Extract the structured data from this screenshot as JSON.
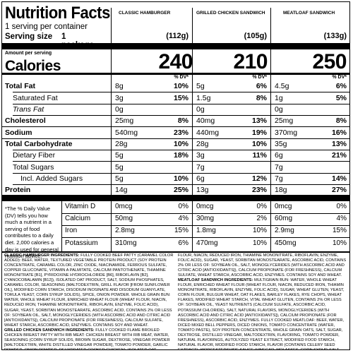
{
  "title": "Nutrition Facts",
  "servings_per_container": "1 serving per container",
  "serving_size_label": "Serving size",
  "serving_size_value": "1 package",
  "amount_per_serving": "Amount per serving",
  "calories_label": "Calories",
  "dv_header": "% DV*",
  "products": [
    {
      "name": "CLASSIC HAMBURGER",
      "size": "(112g)",
      "calories": "240"
    },
    {
      "name": "GRILLED CHICKEN SANDWICH",
      "size": "(105g)",
      "calories": "210"
    },
    {
      "name": "MEATLOAF SANDWICH",
      "size": "(133g)",
      "calories": "250"
    }
  ],
  "nutrients": [
    {
      "label": "Total Fat",
      "style": "bold",
      "values": [
        [
          "8g",
          "10%"
        ],
        [
          "5g",
          "6%"
        ],
        [
          "4.5g",
          "6%"
        ]
      ]
    },
    {
      "label": "Saturated Fat",
      "style": "i1",
      "values": [
        [
          "3g",
          "15%"
        ],
        [
          "1.5g",
          "8%"
        ],
        [
          "1g",
          "5%"
        ]
      ]
    },
    {
      "label": "Trans Fat",
      "style": "i1 it",
      "values": [
        [
          "0g",
          ""
        ],
        [
          "0g",
          ""
        ],
        [
          "0g",
          ""
        ]
      ]
    },
    {
      "label": "Cholesterol",
      "style": "bold",
      "values": [
        [
          "25mg",
          "8%"
        ],
        [
          "40mg",
          "13%"
        ],
        [
          "25mg",
          "8%"
        ]
      ]
    },
    {
      "label": "Sodium",
      "style": "bold",
      "values": [
        [
          "540mg",
          "23%"
        ],
        [
          "440mg",
          "19%"
        ],
        [
          "370mg",
          "16%"
        ]
      ]
    },
    {
      "label": "Total Carbohydrate",
      "style": "bold",
      "values": [
        [
          "28g",
          "10%"
        ],
        [
          "28g",
          "10%"
        ],
        [
          "35g",
          "13%"
        ]
      ]
    },
    {
      "label": "Dietary Fiber",
      "style": "i1",
      "values": [
        [
          "5g",
          "18%"
        ],
        [
          "3g",
          "11%"
        ],
        [
          "6g",
          "21%"
        ]
      ]
    },
    {
      "label": "Total Sugars",
      "style": "i1",
      "values": [
        [
          "5g",
          ""
        ],
        [
          "7g",
          ""
        ],
        [
          "7g",
          ""
        ]
      ]
    },
    {
      "label": "Incl. Added Sugars",
      "style": "i2",
      "values": [
        [
          "5g",
          "10%"
        ],
        [
          "6g",
          "12%"
        ],
        [
          "7g",
          "14%"
        ]
      ]
    },
    {
      "label": "Protein",
      "style": "bold",
      "values": [
        [
          "14g",
          "25%"
        ],
        [
          "13g",
          "23%"
        ],
        [
          "18g",
          "27%"
        ]
      ]
    }
  ],
  "footnote": "*The % Daily Value (DV) tells you how much a nutrient in a serving of food contributes to a daily diet. 2,000 calories a day is used for general nutrition advice.",
  "vitamins": [
    {
      "label": "Vitamin D",
      "values": [
        [
          "0mcg",
          "0%"
        ],
        [
          "0mcg",
          "0%"
        ],
        [
          "0mcg",
          "0%"
        ]
      ]
    },
    {
      "label": "Calcium",
      "values": [
        [
          "50mg",
          "4%"
        ],
        [
          "30mg",
          "2%"
        ],
        [
          "60mg",
          "4%"
        ]
      ]
    },
    {
      "label": "Iron",
      "values": [
        [
          "2.8mg",
          "15%"
        ],
        [
          "1.8mg",
          "10%"
        ],
        [
          "2.9mg",
          "15%"
        ]
      ]
    },
    {
      "label": "Potassium",
      "values": [
        [
          "310mg",
          "6%"
        ],
        [
          "470mg",
          "10%"
        ],
        [
          "450mg",
          "10%"
        ]
      ]
    }
  ],
  "ingredients": [
    {
      "heading": "CLASSIC HAMBURGER INGREDIENTS:",
      "text": "FULLY COOKED BEEF PATTY (CARAMEL COLOR ADDED): BEEF, WATER, TEXTURED VEGETABLE PROTEIN PRODUCT (SOY PROTEIN CONCENTRATE, CARAMEL COLOR, ZINC OXIDE, NIACINAMIDE, FERROUS SULFATE, COPPER GLUCONATE, VITAMIN A PALMITATE, CALCIUM PANTOTHENATE, THIAMINE MONONITRATE [B1], PYRIDOXINE HYDROCHLORIDE [B6], RIBOFLAVIN [B2], CYANOCOBALAMIN [B12]), ISOLATED OAT PRODUCT, SALT, SODIUM PHOSPHATES, CARAMEL COLOR, SEASONING (MALTODEXTRIN, GRILL FLAVOR [FROM SUNFLOWER OIL], MODIFIED CORN STARCH, DISODIUM INOSINATE AND DISODIUM GUANYLATE, TORULA YEAST, CORN SYRUP SOLIDS), SPICE, ONION POWDER. WHOLE GRAIN BUN: WATER, WHOLE WHEAT FLOUR, ENRICHED WHEAT FLOUR (WHEAT FLOUR, NIACIN, REDUCED IRON, THIAMINE MONONITRATE, RIBOFLAVIN, ENZYME, FOLIC ACID), SUGAR, YEAST, SORBITAN MONOSTEARATE, ASCORBIC ACID, CONTAINS 2% OR LESS OF: SOYBEAN OIL, SALT, MONOGLYCERIDES (WITH ASCORBIC ACID AND CITRIC ACID [ANTIOXIDANTS]), CALCIUM PROPIONATE (FOR FRESHNESS), CALCIUM SULFATE, WHEAT STARCH, ASCORBIC ACID, ENZYMES. CONTAINS SOY AND WHEAT."
    },
    {
      "heading": "GRILLED CHICKEN SANDWICH INGREDIENTS:",
      "text": "FULLY COOKED FLAME BROILED CHICKEN BREAST PATTY WITH RIB MEAT: CHICKEN BREAST WITH RIB MEAT, WATER, SEASONING (CORN SYRUP SOLIDS, BROWN SUGAR, DEXTROSE, VINEGAR POWDER [MALTODEXTRIN, WHITE DISTILLED VINEGAR POWDER], TOMATO POWDER, GARLIC POWDER, ONION POWDER, DEHYDRATED COOKED CHICKEN), ISOLATED OAT PRODUCT, SALT, FLAVOR ENHANCER (POTASSIUM CHLORIDE, FLAVORING, AUTOLYZED YEAST EXTRACT, MALTODEXTRIN), SALT, SODIUM PHOSPHATES. WHOLE GRAIN BUN: WATER, WHOLE WHEAT FLOUR, ENRICHED WHEAT FLOUR (WHEAT FLOUR, NIACIN, REDUCED IRON, THIAMINE MONONITRATE, RIBOFLAVIN, ENZYME, FOLIC ACID), SUGAR, YEAST, SORBITAN MONOSTEARATE, ASCORBIC ACID, CONTAINS 2% OR LESS OF: SOYBEAN OIL, SALT, MONOGLYCERIDES (WITH ASCORBIC ACID AND CITRIC ACID [ANTIOXIDANTS]), CALCIUM PROPIONATE (FOR FRESHNESS), CALCIUM SULFATE, WHEAT STARCH, ASCORBIC ACID, ENZYMES. CONTAINS SOY AND WHEAT."
    },
    {
      "heading": "MEATLOAF SANDWICH INGREDIENTS:",
      "text": "MULTIGRAIN BUN: WATER, WHOLE WHEAT FLOUR, ENRICHED WHEAT FLOUR (WHEAT FLOUR, NIACIN, REDUCED IRON, THIAMIN MONONITRATE, RIBOFLAVIN, ENZYME, FOLIC ACID), SUGAR, WHEAT GLUTEN, YEAST, CORN FLOUR, BULGUR WHEAT, OAT FLAKES, BARLEY FLAKES, RYE CHOPS, WHEAT FLAKES, MODIFIED WHEAT STARCH, VITAL WHEAT GLUTEN, CONTAINS 2% OR LESS OF: SOYBEAN OIL, YEAST NUTRIENTS (CALCIUM SULFATE, ASCORBIC ACID, POTASSIUM CHLORIDE), SALT, NATURAL FLAVORS, MONOGLYCERIDES (WITH ASCORBIC ACID AND CITRIC ACID [ANTIOXIDANTS]), CALCIUM PROPIONATE (FOR FRESHNESS), ASCORBIC ACID, ENZYMES. FULLY COOKED MEATLOAF: BEEF, WATER, DICED MIXED BELL PEPPERS, DICED ONIONS, TOMATO CONCENTRATE (WATER, TOMATO PASTE), SOY PROTEIN CONCENTRATE, WHOLE GRAIN OATS, SALT, SUGAR, DEXTROSE, DISTILLED VINEGAR, MALTODEXTRIN, FLAVORING, TOMATO POWDER, NATURAL FLAVORINGS, AUTOLYZED YEAST EXTRACT, MODIFIED FOOD STARCH, NATURAL FLAVOR, MODIFIED FOOD STARCH, FLAVOR (CONTAINS CELERY SEED EXTRACT), WORCESTERSHIRE SAUCE (VINEGAR, MOLASSES, CORN SYRUP, SALT, CARAMEL COLOR, GARLIC, SUGAR, SPICES, TAMARIND, NATURAL FLAVOR), SPICE, SOY SAUCE POWDER (WHEAT, SOYBEANS, SALT), CARAMEL COLOR, DISODIUM INOSINATE, DISODIUM GUANYLATE, SPICE EXTRACTIVES. CONTAINS SOY AND WHEAT."
    }
  ]
}
